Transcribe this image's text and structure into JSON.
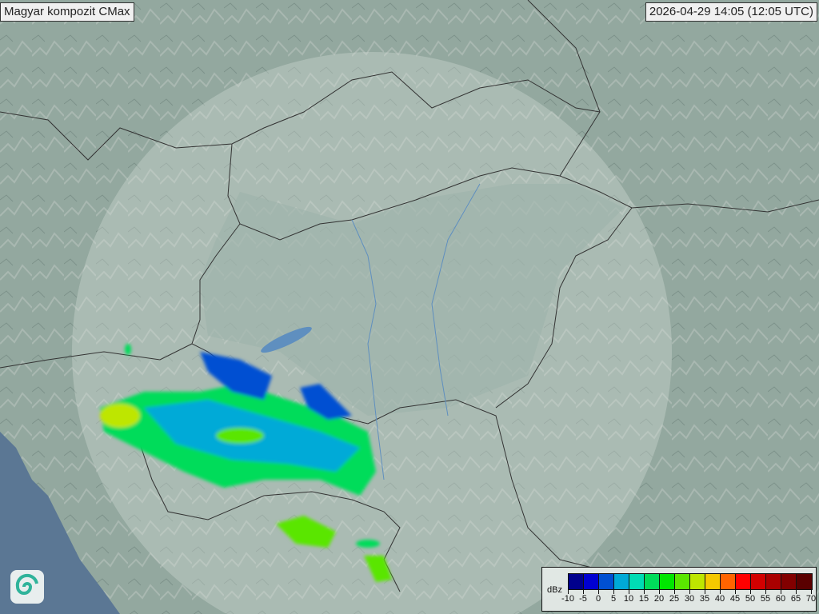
{
  "header": {
    "title": "Magyar kompozit  CMax",
    "timestamp": "2026-04-29 14:05 (12:05 UTC)"
  },
  "legend": {
    "unit": "dBz",
    "ticks": [
      "-10",
      "-5",
      "0",
      "5",
      "10",
      "15",
      "20",
      "25",
      "30",
      "35",
      "40",
      "45",
      "50",
      "55",
      "60",
      "65",
      "70"
    ],
    "colors": [
      "#00008c",
      "#0000d2",
      "#0050d2",
      "#00aad7",
      "#00dcb4",
      "#00dc5a",
      "#00e600",
      "#5ae600",
      "#bee600",
      "#f5c800",
      "#ff6400",
      "#ff0000",
      "#d20000",
      "#aa0000",
      "#820000",
      "#5a0000"
    ]
  },
  "map": {
    "land_color": "#8fa59c",
    "sea_color": "#5b7794",
    "radar_coverage_color": "#c9d5d0"
  }
}
